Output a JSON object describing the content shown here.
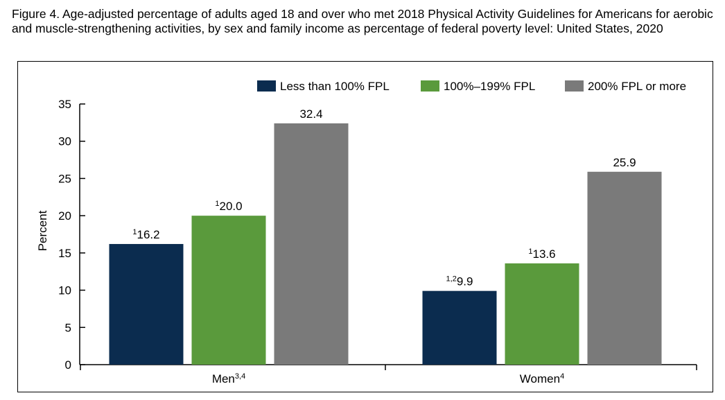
{
  "title": "Figure 4. Age-adjusted percentage of adults aged 18 and over who met 2018 Physical Activity Guidelines for Americans for aerobic and muscle-strengthening activities, by sex and family income as percentage of federal poverty level: United States, 2020",
  "colors": {
    "less_than_100": "#0b2c4f",
    "100_199": "#5a9a3c",
    "200_plus": "#7a7a7a"
  },
  "chart_data": {
    "type": "bar",
    "title": "Figure 4. Age-adjusted percentage of adults aged 18 and over who met 2018 Physical Activity Guidelines for Americans for aerobic and muscle-strengthening activities, by sex and family income as percentage of federal poverty level: United States, 2020",
    "ylabel": "Percent",
    "xlabel": "",
    "ylim": [
      0,
      35
    ],
    "yticks": [
      0,
      5,
      10,
      15,
      20,
      25,
      30,
      35
    ],
    "grid": false,
    "legend_position": "top-right",
    "categories": [
      {
        "label": "Men",
        "sup": "3,4"
      },
      {
        "label": "Women",
        "sup": "4"
      }
    ],
    "series": [
      {
        "name": "Less than 100% FPL",
        "values": [
          16.2,
          9.9
        ],
        "value_labels": [
          "16.2",
          "9.9"
        ],
        "label_sups": [
          "1",
          "1,2"
        ],
        "color": "#0b2c4f"
      },
      {
        "name": "100%–199% FPL",
        "values": [
          20.0,
          13.6
        ],
        "value_labels": [
          "20.0",
          "13.6"
        ],
        "label_sups": [
          "1",
          "1"
        ],
        "color": "#5a9a3c"
      },
      {
        "name": "200% FPL or more",
        "values": [
          32.4,
          25.9
        ],
        "value_labels": [
          "32.4",
          "25.9"
        ],
        "label_sups": [
          "",
          ""
        ],
        "color": "#7a7a7a"
      }
    ]
  }
}
